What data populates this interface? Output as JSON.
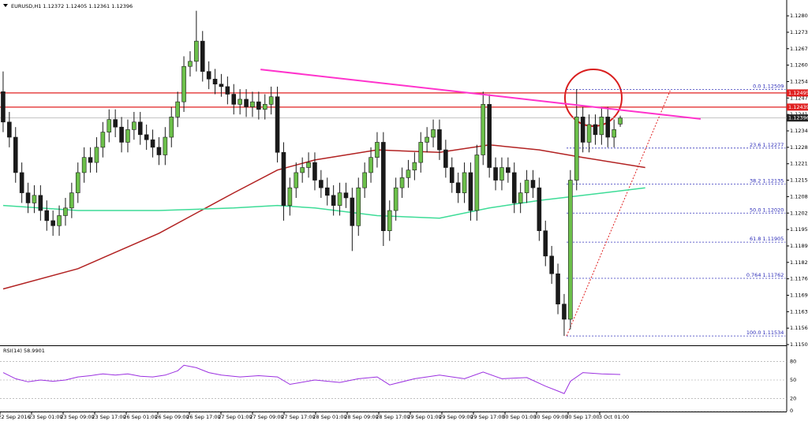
{
  "chart_data": {
    "type": "candlestick",
    "header": "EURUSD,H1 1.12372 1.12405 1.12361 1.12396",
    "up_color": "#6cc04a",
    "down_color": "#1a1a1a",
    "open": [
      1.125,
      1.1238,
      1.1232,
      1.1218,
      1.121,
      1.1206,
      1.1209,
      1.1203,
      1.1199,
      1.1197,
      1.1201,
      1.1204,
      1.121,
      1.1218,
      1.1224,
      1.1222,
      1.1228,
      1.1234,
      1.1239,
      1.1236,
      1.123,
      1.1235,
      1.1238,
      1.1233,
      1.1231,
      1.1228,
      1.1225,
      1.1232,
      1.124,
      1.1246,
      1.126,
      1.1262,
      1.127,
      1.1258,
      1.1255,
      1.1253,
      1.1252,
      1.1249,
      1.1245,
      1.1247,
      1.1244,
      1.1246,
      1.1243,
      1.1245,
      1.1248,
      1.1226,
      1.1205,
      1.1212,
      1.1218,
      1.122,
      1.1222,
      1.1215,
      1.1212,
      1.1209,
      1.1205,
      1.121,
      1.1208,
      1.1197,
      1.1212,
      1.1218,
      1.1224,
      1.123,
      1.1195,
      1.1203,
      1.1212,
      1.1216,
      1.1219,
      1.1222,
      1.123,
      1.1232,
      1.1235,
      1.1227,
      1.122,
      1.1214,
      1.121,
      1.1218,
      1.1203,
      1.1225,
      1.1245,
      1.122,
      1.1215,
      1.122,
      1.1218,
      1.1206,
      1.121,
      1.1215,
      1.1212,
      1.1195,
      1.1185,
      1.1178,
      1.1166,
      1.116,
      1.1215,
      1.124,
      1.123,
      1.1237,
      1.1233,
      1.124,
      1.1232,
      1.12372
    ],
    "high": [
      1.1258,
      1.1242,
      1.1236,
      1.1222,
      1.1214,
      1.1213,
      1.1213,
      1.1207,
      1.1203,
      1.1205,
      1.1208,
      1.1214,
      1.1222,
      1.1228,
      1.1228,
      1.1232,
      1.1238,
      1.1243,
      1.1243,
      1.124,
      1.1239,
      1.1242,
      1.1242,
      1.1237,
      1.1235,
      1.1232,
      1.1236,
      1.1244,
      1.125,
      1.1264,
      1.1266,
      1.1282,
      1.1274,
      1.1262,
      1.1259,
      1.1257,
      1.1256,
      1.1253,
      1.1251,
      1.1251,
      1.125,
      1.125,
      1.1249,
      1.1252,
      1.1252,
      1.123,
      1.1216,
      1.1222,
      1.1224,
      1.1226,
      1.1226,
      1.1219,
      1.1216,
      1.1213,
      1.1214,
      1.1214,
      1.1212,
      1.1216,
      1.1222,
      1.1228,
      1.1234,
      1.1234,
      1.1207,
      1.1216,
      1.122,
      1.1223,
      1.1226,
      1.1234,
      1.1236,
      1.1239,
      1.1239,
      1.1231,
      1.1224,
      1.1218,
      1.1222,
      1.1222,
      1.1229,
      1.125,
      1.1249,
      1.1224,
      1.1224,
      1.1224,
      1.1222,
      1.1214,
      1.1219,
      1.1219,
      1.1216,
      1.1199,
      1.1189,
      1.1182,
      1.117,
      1.1219,
      1.1251,
      1.1244,
      1.1241,
      1.1241,
      1.1244,
      1.1244,
      1.1239,
      1.12405
    ],
    "low": [
      1.1234,
      1.1228,
      1.1214,
      1.1206,
      1.1202,
      1.1202,
      1.1199,
      1.1195,
      1.1193,
      1.1193,
      1.1197,
      1.12,
      1.1206,
      1.1214,
      1.1218,
      1.1218,
      1.1224,
      1.123,
      1.1232,
      1.1226,
      1.1226,
      1.1231,
      1.1229,
      1.1227,
      1.1224,
      1.1221,
      1.1221,
      1.1228,
      1.1236,
      1.1242,
      1.1256,
      1.1258,
      1.1254,
      1.1251,
      1.1249,
      1.1248,
      1.1245,
      1.1241,
      1.1241,
      1.124,
      1.124,
      1.1239,
      1.1239,
      1.1241,
      1.1222,
      1.1199,
      1.1201,
      1.1208,
      1.1214,
      1.1216,
      1.1211,
      1.1208,
      1.1205,
      1.1201,
      1.1201,
      1.1204,
      1.1187,
      1.1193,
      1.1208,
      1.1214,
      1.122,
      1.1189,
      1.1191,
      1.1199,
      1.1208,
      1.1212,
      1.1215,
      1.1218,
      1.1226,
      1.1228,
      1.1223,
      1.1216,
      1.121,
      1.1206,
      1.1206,
      1.1199,
      1.1199,
      1.1221,
      1.1216,
      1.1211,
      1.1211,
      1.1214,
      1.1202,
      1.1202,
      1.1206,
      1.1208,
      1.1191,
      1.1181,
      1.1174,
      1.1162,
      1.11534,
      1.1156,
      1.1211,
      1.1226,
      1.1226,
      1.1229,
      1.1229,
      1.1228,
      1.1228,
      1.12361
    ],
    "close": [
      1.1238,
      1.1232,
      1.1218,
      1.121,
      1.1206,
      1.1209,
      1.1203,
      1.1199,
      1.1197,
      1.1201,
      1.1204,
      1.121,
      1.1218,
      1.1224,
      1.1222,
      1.1228,
      1.1234,
      1.1239,
      1.1236,
      1.123,
      1.1235,
      1.1238,
      1.1233,
      1.1231,
      1.1228,
      1.1225,
      1.1232,
      1.124,
      1.1246,
      1.126,
      1.1262,
      1.127,
      1.1258,
      1.1255,
      1.1253,
      1.1252,
      1.1249,
      1.1245,
      1.1247,
      1.1244,
      1.1246,
      1.1243,
      1.1245,
      1.1248,
      1.1226,
      1.1205,
      1.1212,
      1.1218,
      1.122,
      1.1222,
      1.1215,
      1.1212,
      1.1209,
      1.1205,
      1.121,
      1.1208,
      1.1197,
      1.1212,
      1.1218,
      1.1224,
      1.123,
      1.1195,
      1.1203,
      1.1212,
      1.1216,
      1.1219,
      1.1222,
      1.123,
      1.1232,
      1.1235,
      1.1227,
      1.122,
      1.1214,
      1.121,
      1.1218,
      1.1203,
      1.1225,
      1.1245,
      1.122,
      1.1215,
      1.122,
      1.1218,
      1.1206,
      1.121,
      1.1215,
      1.1212,
      1.1195,
      1.1185,
      1.1178,
      1.1166,
      1.116,
      1.1215,
      1.124,
      1.123,
      1.1237,
      1.1233,
      1.124,
      1.1232,
      1.1235,
      1.12396
    ],
    "xlim": [
      -0.5,
      125.7
    ],
    "ylim": [
      1.11497,
      1.12847
    ],
    "yticks": [
      {
        "value": 1.128,
        "label": "1.12800"
      },
      1.12735,
      {
        "value": 1.1267,
        "label": "1.12670"
      },
      1.12605,
      {
        "value": 1.1254,
        "label": "1.12540"
      },
      1.12475,
      {
        "value": 1.1241,
        "label": "1.12410"
      },
      1.12345,
      {
        "value": 1.1228,
        "label": "1.12280"
      },
      1.12215,
      {
        "value": 1.1215,
        "label": "1.12150"
      },
      1.12085,
      {
        "value": 1.1202,
        "label": "1.12020"
      },
      1.11955,
      {
        "value": 1.1189,
        "label": "1.11890"
      },
      1.11825,
      {
        "value": 1.1176,
        "label": "1.11760"
      },
      1.11695,
      {
        "value": 1.1163,
        "label": "1.11630"
      },
      1.11565,
      {
        "value": 1.115,
        "label": "1.11500"
      }
    ],
    "x_labels": [
      "22 Sep 2016",
      "23 Sep 01:00",
      "23 Sep 09:00",
      "23 Sep 17:00",
      "26 Sep 01:00",
      "26 Sep 09:00",
      "26 Sep 17:00",
      "27 Sep 01:00",
      "27 Sep 09:00",
      "27 Sep 17:00",
      "28 Sep 01:00",
      "28 Sep 09:00",
      "28 Sep 17:00",
      "29 Sep 01:00",
      "29 Sep 09:00",
      "29 Sep 17:00",
      "30 Sep 01:00",
      "30 Sep 09:00",
      "30 Sep 17:00",
      "3 Oct 01:00"
    ],
    "moving_averages": [
      {
        "color": "#b22222",
        "x": [
          0,
          12,
          25,
          37,
          44,
          50,
          60,
          70,
          78,
          86,
          93,
          103
        ],
        "values": [
          1.1172,
          1.118,
          1.1194,
          1.121,
          1.1219,
          1.1223,
          1.1227,
          1.1226,
          1.1229,
          1.1227,
          1.1224,
          1.122
        ]
      },
      {
        "color": "#3ddc97",
        "x": [
          0,
          12,
          25,
          37,
          44,
          50,
          60,
          70,
          78,
          86,
          93,
          103
        ],
        "values": [
          1.1205,
          1.1203,
          1.1203,
          1.1204,
          1.1205,
          1.1204,
          1.1201,
          1.12,
          1.1204,
          1.1207,
          1.1209,
          1.1212
        ]
      }
    ],
    "trendline": {
      "color": "#ff33cc",
      "x": [
        41.3,
        111.9
      ],
      "values": [
        1.12588,
        1.12392
      ]
    },
    "levels": [
      {
        "value": 1.12495,
        "color": "#e02020"
      },
      {
        "value": 1.12439,
        "color": "#e02020"
      }
    ],
    "current_price": 1.12396,
    "fib_color": "#2b2bb8",
    "fib_x": [
      90.4,
      125.5
    ],
    "fib_levels": [
      {
        "label": "0.0 1.12509",
        "price": 1.12509
      },
      {
        "label": "23.6 1.12277",
        "price": 1.12277
      },
      {
        "label": "38.2 1.12135",
        "price": 1.12135
      },
      {
        "label": "50.0 1.12020",
        "price": 1.1202
      },
      {
        "label": "61.8 1.11905",
        "price": 1.11905
      },
      {
        "label": "0.764 1.11762",
        "price": 1.11762
      },
      {
        "label": "100.0 1.11534",
        "price": 1.11534
      }
    ],
    "fib_ray": {
      "color": "#e02020",
      "x": [
        90.4,
        107
      ],
      "values": [
        1.11534,
        1.12504
      ]
    },
    "rsi": {
      "title": "RSI(14) 58.9901",
      "color": "#9b30e0",
      "x": [
        0,
        2,
        4,
        6,
        8,
        10,
        12,
        14,
        16,
        18,
        20,
        22,
        24,
        26,
        28,
        29,
        31,
        33,
        35,
        38,
        41,
        44,
        46,
        50,
        54,
        57,
        60,
        62,
        66,
        70,
        74,
        77,
        80,
        84,
        87,
        89,
        90,
        91,
        93,
        96,
        99
      ],
      "values": [
        62,
        52,
        47,
        50,
        48,
        50,
        55,
        57,
        60,
        58,
        60,
        56,
        55,
        58,
        65,
        74,
        70,
        62,
        58,
        55,
        57,
        55,
        43,
        50,
        46,
        52,
        55,
        42,
        52,
        58,
        52,
        63,
        52,
        54,
        40,
        32,
        28,
        48,
        62,
        60,
        59
      ],
      "ylim": [
        0,
        100
      ],
      "yticks": [
        0,
        20,
        50,
        80
      ]
    }
  }
}
